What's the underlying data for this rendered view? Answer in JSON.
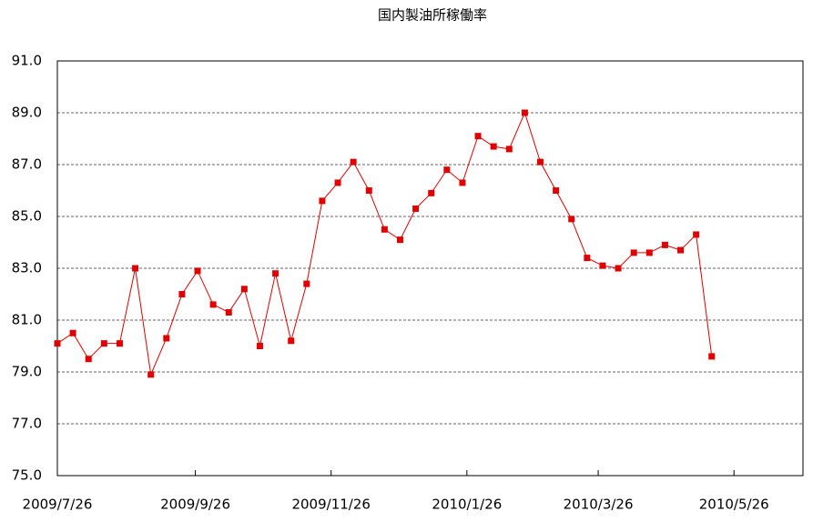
{
  "chart_data": {
    "type": "line",
    "title": "国内製油所稼働率",
    "x": [
      "2009/7/26",
      "2009/8/2",
      "2009/8/9",
      "2009/8/16",
      "2009/8/23",
      "2009/8/30",
      "2009/9/6",
      "2009/9/13",
      "2009/9/20",
      "2009/9/27",
      "2009/10/4",
      "2009/10/11",
      "2009/10/18",
      "2009/10/25",
      "2009/11/1",
      "2009/11/8",
      "2009/11/15",
      "2009/11/22",
      "2009/11/29",
      "2009/12/6",
      "2009/12/13",
      "2009/12/20",
      "2009/12/27",
      "2010/1/3",
      "2010/1/10",
      "2010/1/17",
      "2010/1/24",
      "2010/1/31",
      "2010/2/7",
      "2010/2/14",
      "2010/2/21",
      "2010/2/28",
      "2010/3/7",
      "2010/3/14",
      "2010/3/21",
      "2010/3/28",
      "2010/4/4",
      "2010/4/11",
      "2010/4/18",
      "2010/4/25",
      "2010/5/2",
      "2010/5/9",
      "2010/5/16"
    ],
    "values": [
      80.1,
      80.5,
      79.5,
      80.1,
      80.1,
      83.0,
      78.9,
      80.3,
      82.0,
      82.9,
      81.6,
      81.3,
      82.2,
      80.0,
      82.8,
      80.2,
      82.4,
      85.6,
      86.3,
      87.1,
      86.0,
      84.5,
      84.1,
      85.3,
      85.9,
      86.8,
      86.3,
      88.1,
      87.7,
      87.6,
      89.0,
      87.1,
      86.0,
      84.9,
      83.4,
      83.1,
      83.0,
      83.6,
      83.6,
      83.9,
      83.7,
      84.3,
      79.6
    ],
    "color": "#e00000",
    "xlim": [
      "2009/7/26",
      "2010/6/26"
    ],
    "xticks": [
      "2009/7/26",
      "2009/9/26",
      "2009/11/26",
      "2010/1/26",
      "2010/3/26",
      "2010/5/26"
    ],
    "ylim": [
      75,
      91
    ],
    "yticks": [
      {
        "value": 75,
        "label": "75.0"
      },
      {
        "value": 77,
        "label": "77.0"
      },
      {
        "value": 79,
        "label": "79.0"
      },
      {
        "value": 81,
        "label": "81.0"
      },
      {
        "value": 83,
        "label": "83.0"
      },
      {
        "value": 85,
        "label": "85.0"
      },
      {
        "value": 87,
        "label": "87.0"
      },
      {
        "value": 89,
        "label": "89.0"
      },
      {
        "value": 91,
        "label": "91.0"
      }
    ],
    "grid": true
  }
}
